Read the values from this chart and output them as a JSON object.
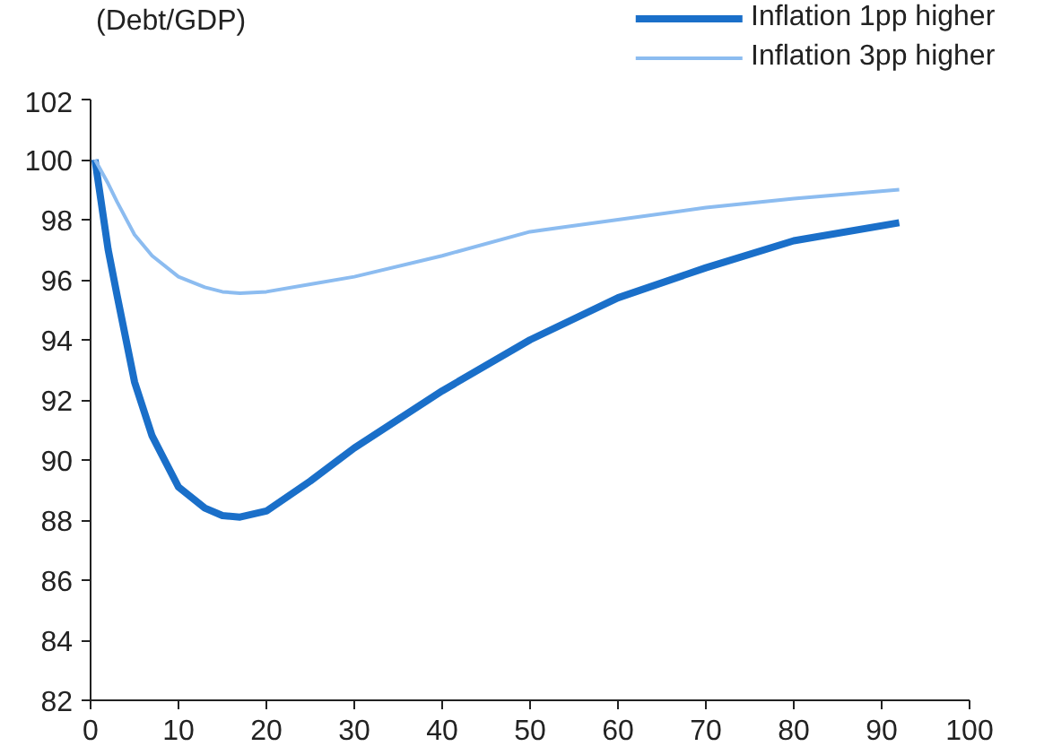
{
  "chart_data": {
    "type": "line",
    "ylabel": "(Debt/GDP)",
    "xlim": [
      0,
      100
    ],
    "ylim": [
      82,
      102
    ],
    "xticks": [
      0,
      10,
      20,
      30,
      40,
      50,
      60,
      70,
      80,
      90,
      100
    ],
    "yticks": [
      82,
      84,
      86,
      88,
      90,
      92,
      94,
      96,
      98,
      100,
      102
    ],
    "grid": false,
    "legend": "top right",
    "marker": "none",
    "line_style": "solid",
    "series": [
      {
        "name": "Inflation 1pp higher",
        "color": "#1a6fc9",
        "x": [
          0.5,
          2,
          3,
          5,
          7,
          10,
          13,
          15,
          17,
          20,
          25,
          30,
          40,
          50,
          60,
          70,
          80,
          92
        ],
        "values": [
          100,
          97,
          95.5,
          92.6,
          90.8,
          89.1,
          88.4,
          88.15,
          88.1,
          88.3,
          89.3,
          90.4,
          92.3,
          94.0,
          95.4,
          96.4,
          97.3,
          97.9
        ]
      },
      {
        "name": "Inflation 3pp higher",
        "color": "#8cbcf0",
        "x": [
          0.5,
          2,
          3,
          5,
          7,
          10,
          13,
          15,
          17,
          20,
          25,
          30,
          40,
          50,
          60,
          70,
          80,
          92
        ],
        "values": [
          100,
          99.2,
          98.6,
          97.5,
          96.8,
          96.1,
          95.75,
          95.6,
          95.55,
          95.6,
          95.85,
          96.1,
          96.8,
          97.6,
          98.0,
          98.4,
          98.7,
          99.0
        ]
      }
    ]
  }
}
